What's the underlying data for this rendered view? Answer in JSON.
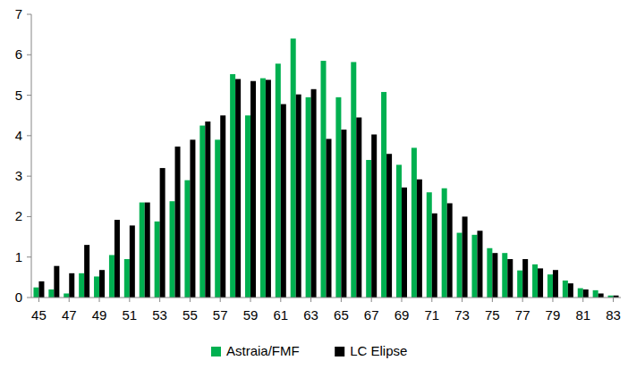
{
  "chart_data": {
    "type": "bar",
    "categories": [
      45,
      null,
      47,
      null,
      49,
      null,
      51,
      null,
      53,
      null,
      55,
      null,
      57,
      null,
      59,
      null,
      61,
      null,
      63,
      null,
      65,
      null,
      67,
      null,
      69,
      null,
      71,
      null,
      73,
      null,
      75,
      null,
      77,
      null,
      79,
      null,
      81,
      null,
      83
    ],
    "series": [
      {
        "name": "Astraia/FMF",
        "color": "#00b050",
        "values": [
          0.25,
          0.2,
          0.1,
          0.6,
          0.52,
          1.05,
          0.95,
          2.35,
          1.88,
          2.38,
          2.9,
          4.25,
          3.9,
          5.52,
          4.5,
          5.42,
          5.78,
          6.4,
          4.95,
          5.85,
          4.95,
          5.82,
          3.4,
          5.08,
          3.28,
          3.7,
          2.6,
          2.7,
          1.6,
          1.55,
          1.22,
          1.1,
          0.67,
          0.82,
          0.57,
          0.42,
          0.23,
          0.18,
          0.05
        ]
      },
      {
        "name": "LC Elipse",
        "color": "#000000",
        "values": [
          0.4,
          0.78,
          0.6,
          1.3,
          0.68,
          1.92,
          1.78,
          2.35,
          3.2,
          3.73,
          3.9,
          4.35,
          4.5,
          5.4,
          5.35,
          5.38,
          4.78,
          5.02,
          5.15,
          3.92,
          4.15,
          4.45,
          4.03,
          3.55,
          2.72,
          2.92,
          2.08,
          2.33,
          2.0,
          1.65,
          1.1,
          0.95,
          0.95,
          0.72,
          0.68,
          0.35,
          0.2,
          0.1,
          0.05
        ]
      }
    ],
    "ylim": [
      0,
      7
    ],
    "yticks": [
      0,
      1,
      2,
      3,
      4,
      5,
      6,
      7
    ],
    "grid": false,
    "legend": "bottom"
  }
}
